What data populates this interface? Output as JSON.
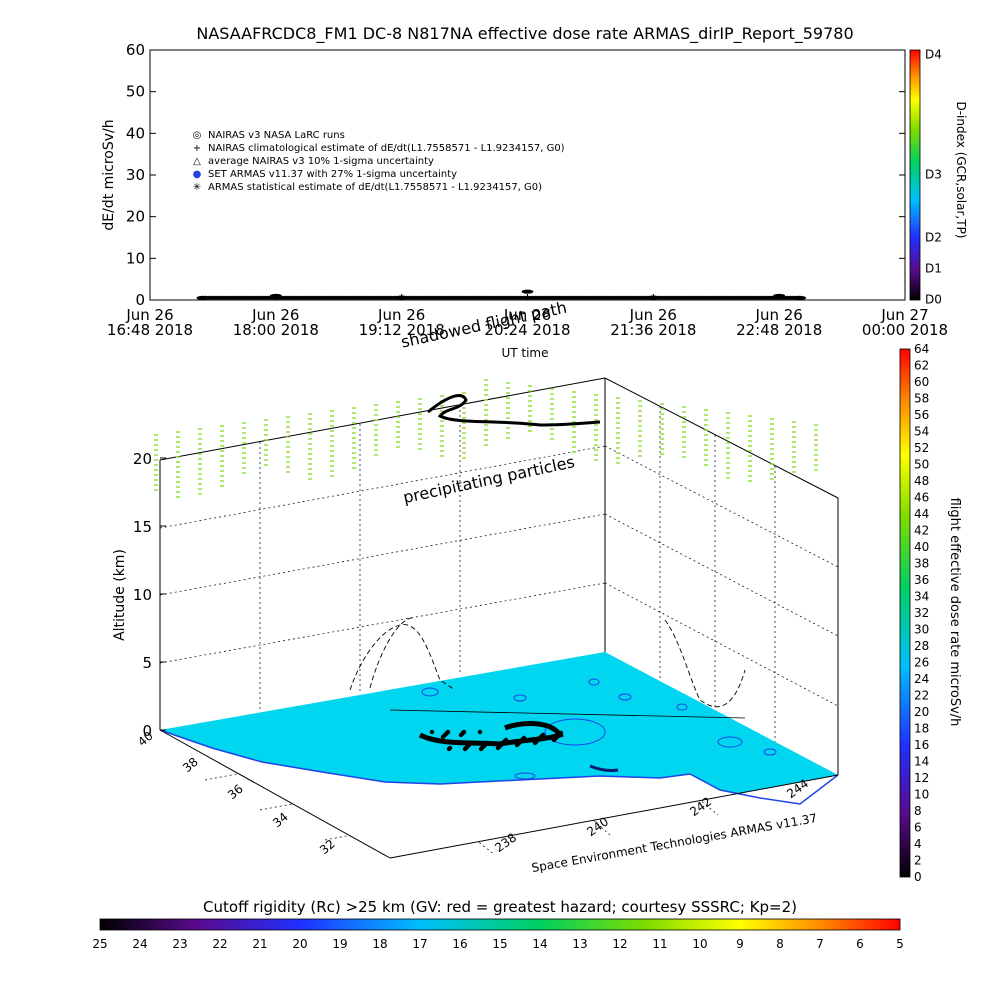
{
  "header": {
    "title": "NASAAFRCDC8_FM1 DC-8    N817NA effective dose rate ARMAS_dirIP_Report_59780"
  },
  "top_panel": {
    "ylabel": "dE/dt microSv/h",
    "xlabel": "UT time",
    "yticks": [
      "0",
      "10",
      "20",
      "30",
      "40",
      "50",
      "60"
    ],
    "xticks": [
      {
        "line1": "Jun 26",
        "line2": "16:48 2018"
      },
      {
        "line1": "Jun 26",
        "line2": "18:00 2018"
      },
      {
        "line1": "Jun 26",
        "line2": "19:12 2018"
      },
      {
        "line1": "Jun 26",
        "line2": "20:24 2018"
      },
      {
        "line1": "Jun 26",
        "line2": "21:36 2018"
      },
      {
        "line1": "Jun 26",
        "line2": "22:48 2018"
      },
      {
        "line1": "Jun 27",
        "line2": "00:00 2018"
      }
    ],
    "legend": [
      {
        "symbol": "◎",
        "text": "NAIRAS v3 NASA LaRC runs"
      },
      {
        "symbol": "+",
        "text": "NAIRAS climatological estimate of dE/dt(L1.7558571 - L1.9234157, G0)"
      },
      {
        "symbol": "△",
        "text": "average NAIRAS v3 10% 1-sigma uncertainty"
      },
      {
        "symbol": "●",
        "text": "SET ARMAS v11.37 with 27% 1-sigma uncertainty"
      },
      {
        "symbol": "✳",
        "text": "ARMAS statistical estimate of dE/dt(L1.7558571 - L1.9234157, G0)"
      }
    ],
    "dindex_label": "D-index (GCR,solar,TP)",
    "dindex_ticks": [
      "D0",
      "D1",
      "D2",
      "D3",
      "D4"
    ]
  },
  "chart_data": [
    {
      "type": "scatter",
      "title": "NASAAFRCDC8_FM1 DC-8    N817NA effective dose rate ARMAS_dirIP_Report_59780",
      "xlabel": "UT time",
      "ylabel": "dE/dt microSv/h",
      "xlim": [
        "2018-06-26 16:48",
        "2018-06-27 00:00"
      ],
      "ylim": [
        0,
        60
      ],
      "series": [
        {
          "name": "ARMAS statistical estimate of dE/dt(L1.7558571 - L1.9234157, G0)",
          "x": [
            "2018-06-26 17:18",
            "2018-06-26 18:00",
            "2018-06-26 19:12",
            "2018-06-26 20:24",
            "2018-06-26 21:36",
            "2018-06-26 22:48",
            "2018-06-26 23:00"
          ],
          "y": [
            0.5,
            1.0,
            0.6,
            2.0,
            0.6,
            1.0,
            0.5
          ]
        }
      ]
    },
    {
      "type": "scatter",
      "title": "",
      "xlabel": "",
      "ylabel": "Altitude (km)",
      "zlim": [
        0,
        20
      ],
      "lat_ticks": [
        "40",
        "38",
        "36",
        "34",
        "32"
      ],
      "lon_ticks": [
        "238",
        "240",
        "242",
        "244"
      ],
      "zticks": [
        "0",
        "5",
        "10",
        "15",
        "20"
      ],
      "annotations": [
        "precipitating particles",
        "shadowed flight path"
      ],
      "footer": "Space Environment Technologies ARMAS v11.37"
    }
  ],
  "right_colorbar": {
    "label": "flight effective dose rate microSv/h",
    "ticks": [
      "0",
      "2",
      "4",
      "6",
      "8",
      "10",
      "12",
      "14",
      "16",
      "18",
      "20",
      "22",
      "24",
      "26",
      "28",
      "30",
      "32",
      "34",
      "36",
      "38",
      "40",
      "42",
      "44",
      "46",
      "48",
      "50",
      "52",
      "54",
      "56",
      "58",
      "60",
      "62",
      "64"
    ]
  },
  "bottom_colorbar": {
    "label": "Cutoff rigidity (Rc) >25 km (GV: red = greatest hazard; courtesy SSSRC; Kp=2)",
    "ticks": [
      "25",
      "24",
      "23",
      "22",
      "21",
      "20",
      "19",
      "18",
      "17",
      "16",
      "15",
      "14",
      "13",
      "12",
      "11",
      "10",
      "9",
      "8",
      "7",
      "6",
      "5"
    ]
  },
  "colors": {
    "ocean": "#00d6ef",
    "land": "#ffffff",
    "contour_blue": "#1e44e6",
    "particles": "#88dd33"
  }
}
